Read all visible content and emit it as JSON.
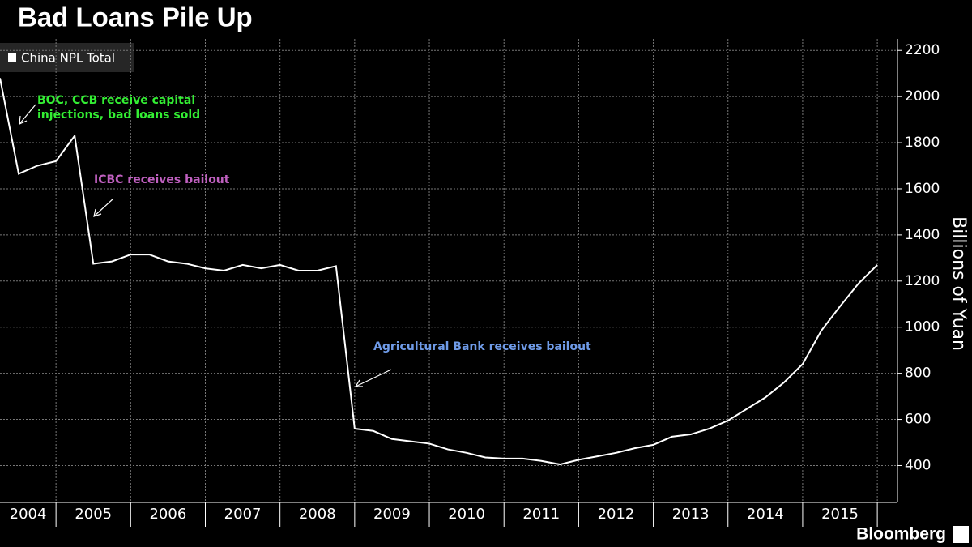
{
  "chart_data": {
    "type": "line",
    "title": "Bad Loans Pile Up",
    "y_label": "Billions of Yuan",
    "source": "Bloomberg",
    "legend": "top-left",
    "grid": true,
    "x": [
      2004.25,
      2004.5,
      2004.75,
      2005,
      2005.25,
      2005.5,
      2005.75,
      2006,
      2006.25,
      2006.5,
      2006.75,
      2007,
      2007.25,
      2007.5,
      2007.75,
      2008,
      2008.25,
      2008.5,
      2008.75,
      2009,
      2009.25,
      2009.5,
      2009.75,
      2010,
      2010.25,
      2010.5,
      2010.75,
      2011,
      2011.25,
      2011.5,
      2011.75,
      2012,
      2012.25,
      2012.5,
      2012.75,
      2013,
      2013.25,
      2013.5,
      2013.75,
      2014,
      2014.25,
      2014.5,
      2014.75,
      2015,
      2015.25,
      2015.5,
      2015.75,
      2016
    ],
    "series": [
      {
        "name": "China NPL Total",
        "color": "#ffffff",
        "axis": "y2",
        "values": [
          2080,
          1665,
          1700,
          1720,
          1830,
          1275,
          1285,
          1315,
          1315,
          1285,
          1275,
          1255,
          1245,
          1270,
          1255,
          1270,
          1245,
          1245,
          1265,
          560,
          550,
          515,
          505,
          495,
          470,
          455,
          435,
          430,
          430,
          420,
          405,
          425,
          440,
          455,
          475,
          490,
          525,
          535,
          560,
          595,
          645,
          695,
          760,
          840,
          985,
          1090,
          1190,
          1270
        ]
      }
    ],
    "xlim": [
      2004.25,
      2016.27
    ],
    "xticks": [
      {
        "value": 2004.625,
        "label": "2004"
      },
      {
        "value": 2005.5,
        "label": "2005"
      },
      {
        "value": 2006.5,
        "label": "2006"
      },
      {
        "value": 2007.5,
        "label": "2007"
      },
      {
        "value": 2008.5,
        "label": "2008"
      },
      {
        "value": 2009.5,
        "label": "2009"
      },
      {
        "value": 2010.5,
        "label": "2010"
      },
      {
        "value": 2011.5,
        "label": "2011"
      },
      {
        "value": 2012.5,
        "label": "2012"
      },
      {
        "value": 2013.5,
        "label": "2013"
      },
      {
        "value": 2014.5,
        "label": "2014"
      },
      {
        "value": 2015.5,
        "label": "2015"
      }
    ],
    "xgrid": [
      2005,
      2006,
      2007,
      2008,
      2009,
      2010,
      2011,
      2012,
      2013,
      2014,
      2015,
      2016
    ],
    "y2lim": [
      240,
      2250
    ],
    "y2ticks": [
      400,
      600,
      800,
      1000,
      1200,
      1400,
      1600,
      1800,
      2000,
      2200
    ],
    "annotations": [
      {
        "text": [
          "BOC, CCB receive capital",
          "injections, bad loans sold"
        ],
        "color": "#33ee33"
      },
      {
        "text": [
          "ICBC receives bailout"
        ],
        "color": "#c060c0"
      },
      {
        "text": [
          "Agricultural Bank receives bailout"
        ],
        "color": "#6f9be8"
      }
    ]
  }
}
